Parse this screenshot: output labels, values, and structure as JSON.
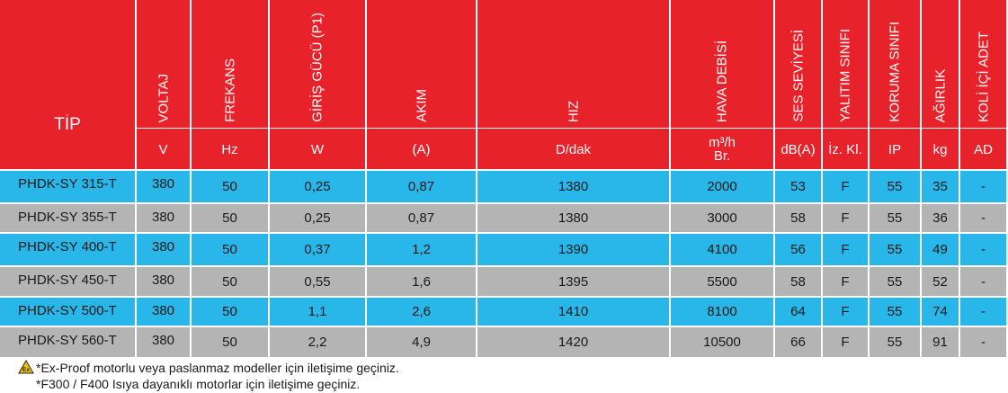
{
  "table": {
    "tip_header": "TİP",
    "columns": [
      {
        "key": "voltaj",
        "label": "VOLTAJ",
        "unit": "V"
      },
      {
        "key": "frekans",
        "label": "FREKANS",
        "unit": "Hz"
      },
      {
        "key": "guc",
        "label": "GİRİŞ GÜCÜ (P1)",
        "unit": "W"
      },
      {
        "key": "akim",
        "label": "AKIM",
        "unit": "(A)"
      },
      {
        "key": "hiz",
        "label": "HIZ",
        "unit": "D/dak"
      },
      {
        "key": "debi",
        "label": "HAVA DEBİSİ",
        "unit": "m³/h Br."
      },
      {
        "key": "ses",
        "label": "SES SEVİYESİ",
        "unit": "dB(A)"
      },
      {
        "key": "yalitim",
        "label": "YALITIM SINIFI",
        "unit": "İz. Kl."
      },
      {
        "key": "koruma",
        "label": "KORUMA SINIFI",
        "unit": "IP"
      },
      {
        "key": "agirlik",
        "label": "AĞIRLIK",
        "unit": "kg"
      },
      {
        "key": "koli",
        "label": "KOLİ İÇİ ADET",
        "unit": "AD"
      }
    ],
    "rows": [
      [
        "PHDK-SY 315-T",
        "380",
        "50",
        "0,25",
        "0,87",
        "1380",
        "2000",
        "53",
        "F",
        "55",
        "35",
        "-"
      ],
      [
        "PHDK-SY 355-T",
        "380",
        "50",
        "0,25",
        "0,87",
        "1380",
        "3000",
        "58",
        "F",
        "55",
        "36",
        "-"
      ],
      [
        "PHDK-SY 400-T",
        "380",
        "50",
        "0,37",
        "1,2",
        "1390",
        "4100",
        "56",
        "F",
        "55",
        "49",
        "-"
      ],
      [
        "PHDK-SY 450-T",
        "380",
        "50",
        "0,55",
        "1,6",
        "1395",
        "5500",
        "58",
        "F",
        "55",
        "52",
        "-"
      ],
      [
        "PHDK-SY 500-T",
        "380",
        "50",
        "1,1",
        "2,6",
        "1410",
        "8100",
        "64",
        "F",
        "55",
        "74",
        "-"
      ],
      [
        "PHDK-SY 560-T",
        "380",
        "50",
        "2,2",
        "4,9",
        "1420",
        "10500",
        "66",
        "F",
        "55",
        "91",
        "-"
      ]
    ]
  },
  "notes": {
    "line1": "*Ex-Proof motorlu veya paslanmaz modeller için iletişime geçiniz.",
    "line2": "*F300 / F400 Isıya dayanıklı motorlar için iletişime geçiniz.",
    "icon": "ex-proof-icon",
    "icon_text": "Ex"
  },
  "colors": {
    "header": "#e8222a",
    "row_blue": "#29b6e8",
    "row_gray": "#b4b4b4"
  }
}
